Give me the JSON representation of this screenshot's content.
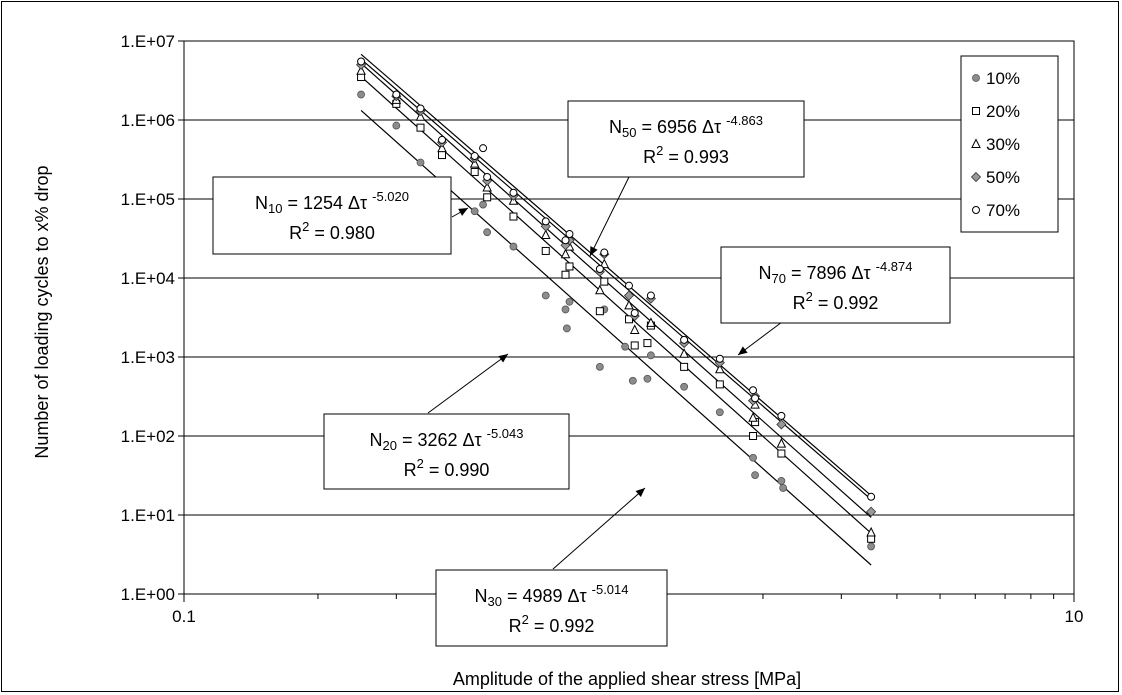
{
  "chart_data": {
    "type": "scatter",
    "xlabel": "Amplitude of the applied shear stress [MPa]",
    "ylabel": "Number of loading cycles to x% drop",
    "x_scale": "log",
    "y_scale": "log",
    "xlim": [
      0.1,
      10
    ],
    "ylim": [
      1,
      10000000
    ],
    "x_ticks": [
      {
        "value": 0.1,
        "label": "0.1"
      },
      {
        "value": 1,
        "label": "1"
      },
      {
        "value": 10,
        "label": "10"
      }
    ],
    "y_ticks": [
      {
        "value": 1,
        "label": "1.E+00"
      },
      {
        "value": 10,
        "label": "1.E+01"
      },
      {
        "value": 100,
        "label": "1.E+02"
      },
      {
        "value": 1000,
        "label": "1.E+03"
      },
      {
        "value": 10000,
        "label": "1.E+04"
      },
      {
        "value": 100000,
        "label": "1.E+05"
      },
      {
        "value": 1000000,
        "label": "1.E+06"
      },
      {
        "value": 10000000,
        "label": "1.E+07"
      }
    ],
    "grid": "horizontal major",
    "legend_position": "top-right",
    "series": [
      {
        "name": "10%",
        "marker": "circle-filled",
        "fit": {
          "a": 1254,
          "b": -5.02,
          "x_range": [
            0.25,
            3.5
          ]
        },
        "points": [
          [
            0.25,
            2100000
          ],
          [
            0.3,
            850000
          ],
          [
            0.34,
            290000
          ],
          [
            0.38,
            155000
          ],
          [
            0.385,
            130000
          ],
          [
            0.45,
            70000
          ],
          [
            0.47,
            85000
          ],
          [
            0.48,
            38000
          ],
          [
            0.55,
            25000
          ],
          [
            0.65,
            6000
          ],
          [
            0.72,
            4000
          ],
          [
            0.725,
            2300
          ],
          [
            0.735,
            5000
          ],
          [
            0.86,
            750
          ],
          [
            0.88,
            4000
          ],
          [
            0.98,
            1350
          ],
          [
            1.02,
            500
          ],
          [
            1.1,
            530
          ],
          [
            1.12,
            1050
          ],
          [
            1.33,
            420
          ],
          [
            1.6,
            200
          ],
          [
            1.9,
            53
          ],
          [
            1.92,
            32
          ],
          [
            2.2,
            27
          ],
          [
            2.22,
            22
          ],
          [
            3.5,
            4
          ]
        ]
      },
      {
        "name": "20%",
        "marker": "square-open",
        "fit": {
          "a": 3262,
          "b": -5.043,
          "x_range": [
            0.25,
            3.5
          ]
        },
        "points": [
          [
            0.25,
            3500000
          ],
          [
            0.3,
            1600000
          ],
          [
            0.34,
            800000
          ],
          [
            0.38,
            360000
          ],
          [
            0.45,
            220000
          ],
          [
            0.48,
            105000
          ],
          [
            0.55,
            60000
          ],
          [
            0.65,
            22000
          ],
          [
            0.72,
            11000
          ],
          [
            0.735,
            14000
          ],
          [
            0.86,
            3800
          ],
          [
            0.88,
            9000
          ],
          [
            1.0,
            3000
          ],
          [
            1.03,
            1400
          ],
          [
            1.1,
            1500
          ],
          [
            1.12,
            2500
          ],
          [
            1.33,
            750
          ],
          [
            1.6,
            450
          ],
          [
            1.9,
            100
          ],
          [
            1.92,
            150
          ],
          [
            2.2,
            60
          ],
          [
            3.5,
            5
          ]
        ]
      },
      {
        "name": "30%",
        "marker": "triangle-open",
        "fit": {
          "a": 4989,
          "b": -5.014,
          "x_range": [
            0.25,
            3.5
          ]
        },
        "points": [
          [
            0.25,
            4200000
          ],
          [
            0.3,
            1800000
          ],
          [
            0.34,
            1100000
          ],
          [
            0.38,
            440000
          ],
          [
            0.45,
            280000
          ],
          [
            0.48,
            140000
          ],
          [
            0.55,
            95000
          ],
          [
            0.65,
            35000
          ],
          [
            0.72,
            20000
          ],
          [
            0.735,
            25000
          ],
          [
            0.86,
            7000
          ],
          [
            0.88,
            15000
          ],
          [
            1.0,
            4500
          ],
          [
            1.03,
            2200
          ],
          [
            1.12,
            2700
          ],
          [
            1.33,
            1100
          ],
          [
            1.6,
            700
          ],
          [
            1.9,
            170
          ],
          [
            1.92,
            250
          ],
          [
            2.2,
            80
          ],
          [
            3.5,
            6
          ]
        ]
      },
      {
        "name": "50%",
        "marker": "diamond-filled",
        "fit": {
          "a": 6956,
          "b": -4.863,
          "x_range": [
            0.25,
            3.5
          ]
        },
        "points": [
          [
            0.25,
            5000000
          ],
          [
            0.3,
            2000000
          ],
          [
            0.34,
            1300000
          ],
          [
            0.38,
            520000
          ],
          [
            0.45,
            330000
          ],
          [
            0.48,
            170000
          ],
          [
            0.55,
            110000
          ],
          [
            0.65,
            45000
          ],
          [
            0.72,
            26000
          ],
          [
            0.735,
            30000
          ],
          [
            0.86,
            12000
          ],
          [
            0.88,
            20000
          ],
          [
            1.0,
            6000
          ],
          [
            1.03,
            3300
          ],
          [
            1.12,
            5500
          ],
          [
            1.33,
            1500
          ],
          [
            1.6,
            850
          ],
          [
            1.9,
            280
          ],
          [
            1.92,
            320
          ],
          [
            2.2,
            140
          ],
          [
            3.5,
            11
          ]
        ]
      },
      {
        "name": "70%",
        "marker": "circle-open",
        "fit": {
          "a": 7896,
          "b": -4.874,
          "x_range": [
            0.25,
            3.5
          ]
        },
        "points": [
          [
            0.25,
            5500000
          ],
          [
            0.3,
            2100000
          ],
          [
            0.34,
            1400000
          ],
          [
            0.38,
            560000
          ],
          [
            0.45,
            350000
          ],
          [
            0.47,
            440000
          ],
          [
            0.48,
            190000
          ],
          [
            0.55,
            120000
          ],
          [
            0.65,
            52000
          ],
          [
            0.72,
            30000
          ],
          [
            0.735,
            36000
          ],
          [
            0.86,
            13000
          ],
          [
            0.88,
            21000
          ],
          [
            1.0,
            8000
          ],
          [
            1.03,
            3600
          ],
          [
            1.12,
            6000
          ],
          [
            1.33,
            1650
          ],
          [
            1.6,
            950
          ],
          [
            1.9,
            380
          ],
          [
            1.92,
            300
          ],
          [
            2.2,
            180
          ],
          [
            3.5,
            17
          ]
        ]
      }
    ],
    "annotations": [
      {
        "id": "n10",
        "prefix": "N",
        "sub": "10",
        "mid": " = 1254 Δτ ",
        "sup": "-5.020",
        "r2_label": "R",
        "r2_sup": "2",
        "r2_value": " = 0.980"
      },
      {
        "id": "n20",
        "prefix": "N",
        "sub": "20",
        "mid": " = 3262 Δτ ",
        "sup": "-5.043",
        "r2_label": "R",
        "r2_sup": "2",
        "r2_value": " = 0.990"
      },
      {
        "id": "n30",
        "prefix": "N",
        "sub": "30",
        "mid": " = 4989 Δτ ",
        "sup": "-5.014",
        "r2_label": "R",
        "r2_sup": "2",
        "r2_value": " = 0.992"
      },
      {
        "id": "n50",
        "prefix": "N",
        "sub": "50",
        "mid": " = 6956 Δτ ",
        "sup": "-4.863",
        "r2_label": "R",
        "r2_sup": "2",
        "r2_value": " = 0.993"
      },
      {
        "id": "n70",
        "prefix": "N",
        "sub": "70",
        "mid": " = 7896 Δτ ",
        "sup": "-4.874",
        "r2_label": "R",
        "r2_sup": "2",
        "r2_value": " = 0.992"
      }
    ]
  }
}
